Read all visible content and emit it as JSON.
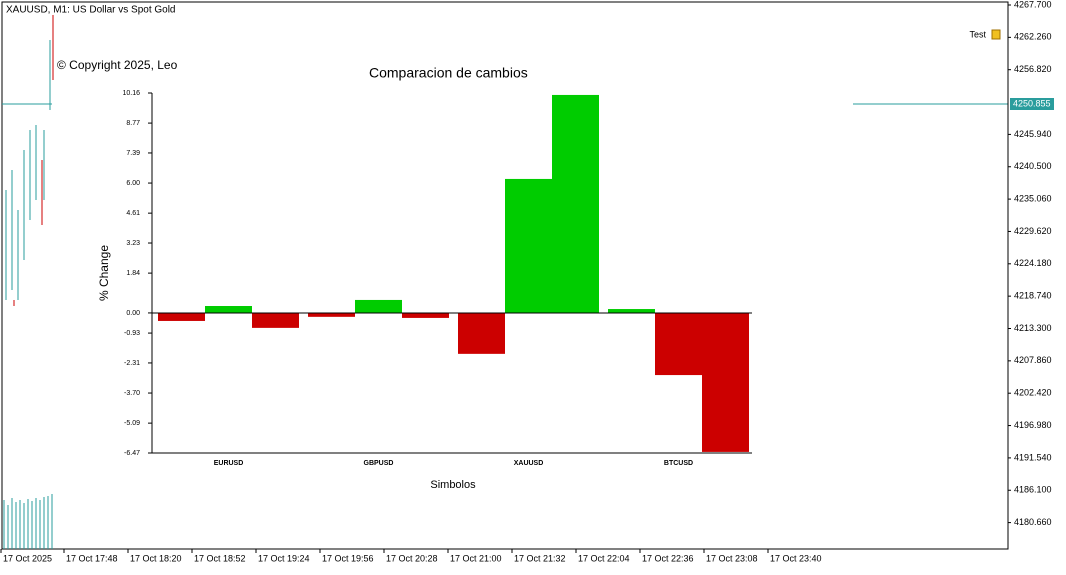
{
  "window": {
    "symbol_title": "XAUUSD, M1:  US Dollar vs Spot Gold",
    "copyright": "© Copyright 2025, Leo",
    "indicator_label": "Test",
    "current_price": "4250.855",
    "price_labels": [
      "4267.700",
      "4262.260",
      "4256.820",
      "4245.940",
      "4240.500",
      "4235.060",
      "4229.620",
      "4224.180",
      "4218.740",
      "4213.300",
      "4207.860",
      "4202.420",
      "4196.980",
      "4191.540",
      "4186.100",
      "4180.660"
    ],
    "time_labels": [
      "17 Oct 2025",
      "17 Oct 17:48",
      "17 Oct 18:20",
      "17 Oct 18:52",
      "17 Oct 19:24",
      "17 Oct 19:56",
      "17 Oct 20:28",
      "17 Oct 21:00",
      "17 Oct 21:32",
      "17 Oct 22:04",
      "17 Oct 22:36",
      "17 Oct 23:08",
      "17 Oct 23:40"
    ]
  },
  "chart_data": {
    "type": "bar",
    "title": "Comparacion de cambios",
    "y_label": "% Change",
    "x_label": "Simbolos",
    "categories": [
      "EURUSD",
      "GBPUSD",
      "XAUUSD",
      "BTCUSD"
    ],
    "series": [
      {
        "values": [
          -0.37,
          -0.18,
          -1.89,
          0.18
        ]
      },
      {
        "values": [
          0.32,
          0.6,
          6.19,
          -2.87
        ]
      },
      {
        "values": [
          -0.69,
          -0.23,
          10.07,
          -6.42
        ]
      }
    ],
    "positive_color": "#00cc00",
    "negative_color": "#cc0000",
    "ylim": [
      -6.47,
      10.16
    ],
    "yticks": [
      10.16,
      8.77,
      7.39,
      {
        "value": 6,
        "label": "6.00"
      },
      4.61,
      3.23,
      1.84,
      {
        "value": 0,
        "label": "0.00"
      },
      -0.93,
      -2.31,
      {
        "value": -3.7,
        "label": "-3.70"
      },
      -5.09,
      -6.47
    ]
  }
}
